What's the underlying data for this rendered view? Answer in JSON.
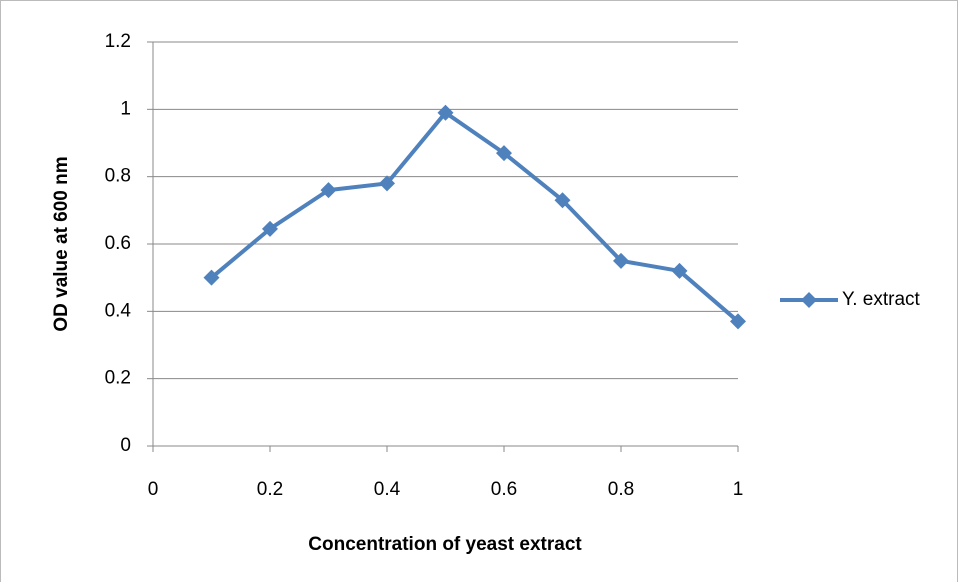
{
  "chart_data": {
    "type": "line",
    "x_label": "Concentration of yeast extract",
    "y_label": "OD value at 600 nm",
    "x": [
      0.1,
      0.2,
      0.3,
      0.4,
      0.5,
      0.6,
      0.7,
      0.8,
      0.9,
      1
    ],
    "series": [
      {
        "name": "Y. extract",
        "color": "#4f81bd",
        "values": [
          0.5,
          0.645,
          0.76,
          0.78,
          0.99,
          0.87,
          0.73,
          0.55,
          0.52,
          0.37
        ]
      }
    ],
    "xlim": [
      0,
      1
    ],
    "xticks": [
      0,
      0.2,
      0.4,
      0.6,
      0.8,
      1
    ],
    "ylim": [
      0,
      1.2
    ],
    "yticks": [
      0,
      0.2,
      0.4,
      0.6,
      0.8,
      1,
      1.2
    ],
    "grid": true,
    "legend": "right"
  }
}
